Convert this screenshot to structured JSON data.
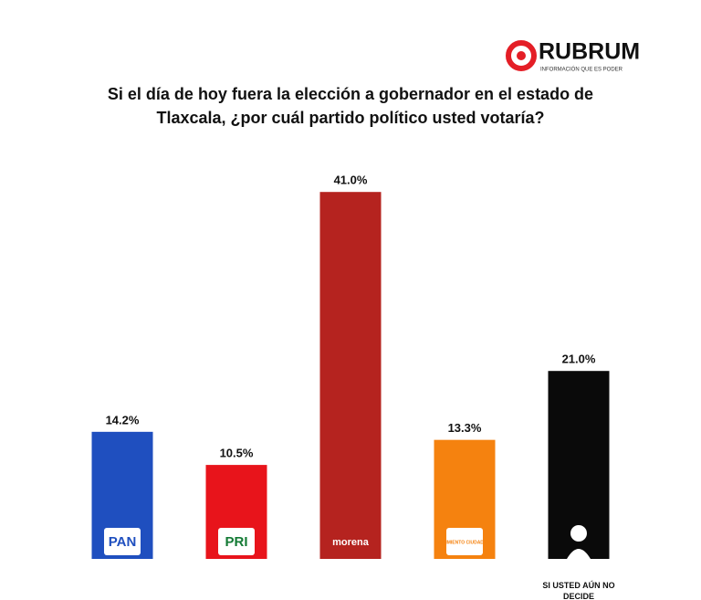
{
  "chart_data": {
    "type": "bar",
    "brand": "RUBRUM",
    "brand_tagline": "INFORMACIÓN QUE ES PODER",
    "title": "Si el día de hoy fuera la elección a gobernador en el estado de Tlaxcala, ¿por cuál partido político usted votaría?",
    "categories": [
      "PAN",
      "PRI",
      "morena",
      "MOVIMIENTO CIUDADANO",
      "SI USTED AÚN NO DECIDE"
    ],
    "values": [
      14.2,
      10.5,
      41.0,
      13.3,
      21.0
    ],
    "value_labels": [
      "14.2%",
      "10.5%",
      "41.0%",
      "13.3%",
      "21.0%"
    ],
    "colors": [
      "#1f4fbf",
      "#e8141b",
      "#b5231f",
      "#f5820f",
      "#0a0a0a"
    ]
  }
}
